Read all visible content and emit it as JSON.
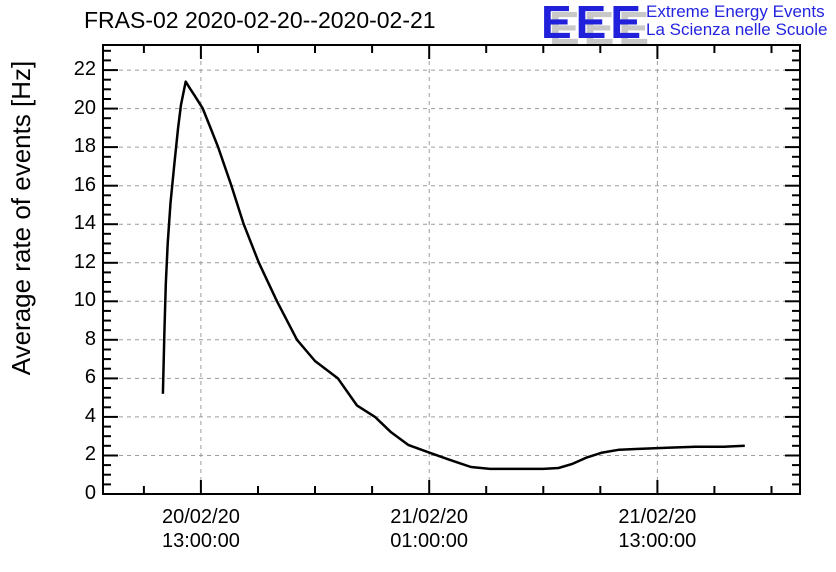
{
  "page": {
    "background": "#ffffff"
  },
  "header": {
    "logo": {
      "acronym": "EEE",
      "line1": "Extreme Energy Events",
      "line2": "La Scienza nelle Scuole",
      "color": "#2121DC",
      "shadow_color": "#c8c8c8"
    }
  },
  "chart_data": {
    "type": "line",
    "title": "FRAS-02 2020-02-20--2020-02-21",
    "xlabel": "",
    "ylabel": "Average rate of events [Hz]",
    "ylim": [
      0,
      23.3
    ],
    "y_major_ticks": [
      0,
      2,
      4,
      6,
      8,
      10,
      12,
      14,
      16,
      18,
      20,
      22
    ],
    "y_minor_tick_step": 0.5,
    "x_unit": "hours since 2020-02-20 00:00:00",
    "xlim_hours": [
      7.85,
      44.5
    ],
    "x_major_ticks_hours": [
      13,
      25,
      37
    ],
    "x_first_tick_hour": 10,
    "x_minor_tick_step_hours": 3,
    "x_tick_labels": [
      {
        "hour": 13,
        "line1": "20/02/20",
        "line2": "13:00:00"
      },
      {
        "hour": 25,
        "line1": "21/02/20",
        "line2": "01:00:00"
      },
      {
        "hour": 37,
        "line1": "21/02/20",
        "line2": "13:00:00"
      }
    ],
    "grid": true,
    "colors": {
      "curve": "#000000",
      "grid": "#9c9c9c",
      "frame": "#000000"
    },
    "series": [
      {
        "name": "average rate of events",
        "color": "#000000",
        "points_hour_hz": [
          [
            11.0,
            5.2
          ],
          [
            11.08,
            8.4
          ],
          [
            11.15,
            10.9
          ],
          [
            11.25,
            13.0
          ],
          [
            11.4,
            15.1
          ],
          [
            11.6,
            17.1
          ],
          [
            11.8,
            19.0
          ],
          [
            11.95,
            20.2
          ],
          [
            12.2,
            21.4
          ],
          [
            12.45,
            21.0
          ],
          [
            12.65,
            20.7
          ],
          [
            13.1,
            20.0
          ],
          [
            13.5,
            19.0
          ],
          [
            13.9,
            18.0
          ],
          [
            14.6,
            16.0
          ],
          [
            15.25,
            14.0
          ],
          [
            16.05,
            12.0
          ],
          [
            17.0,
            10.0
          ],
          [
            18.05,
            8.0
          ],
          [
            19.0,
            6.9
          ],
          [
            20.2,
            6.0
          ],
          [
            21.2,
            4.6
          ],
          [
            22.15,
            4.0
          ],
          [
            23.0,
            3.2
          ],
          [
            23.9,
            2.55
          ],
          [
            25.0,
            2.15
          ],
          [
            26.0,
            1.8
          ],
          [
            26.6,
            1.6
          ],
          [
            27.2,
            1.4
          ],
          [
            28.2,
            1.3
          ],
          [
            29.5,
            1.3
          ],
          [
            31.0,
            1.3
          ],
          [
            31.8,
            1.35
          ],
          [
            32.5,
            1.55
          ],
          [
            33.3,
            1.9
          ],
          [
            34.1,
            2.15
          ],
          [
            35.0,
            2.3
          ],
          [
            36.2,
            2.35
          ],
          [
            37.5,
            2.4
          ],
          [
            39.0,
            2.45
          ],
          [
            40.5,
            2.45
          ],
          [
            41.6,
            2.5
          ]
        ]
      }
    ]
  }
}
